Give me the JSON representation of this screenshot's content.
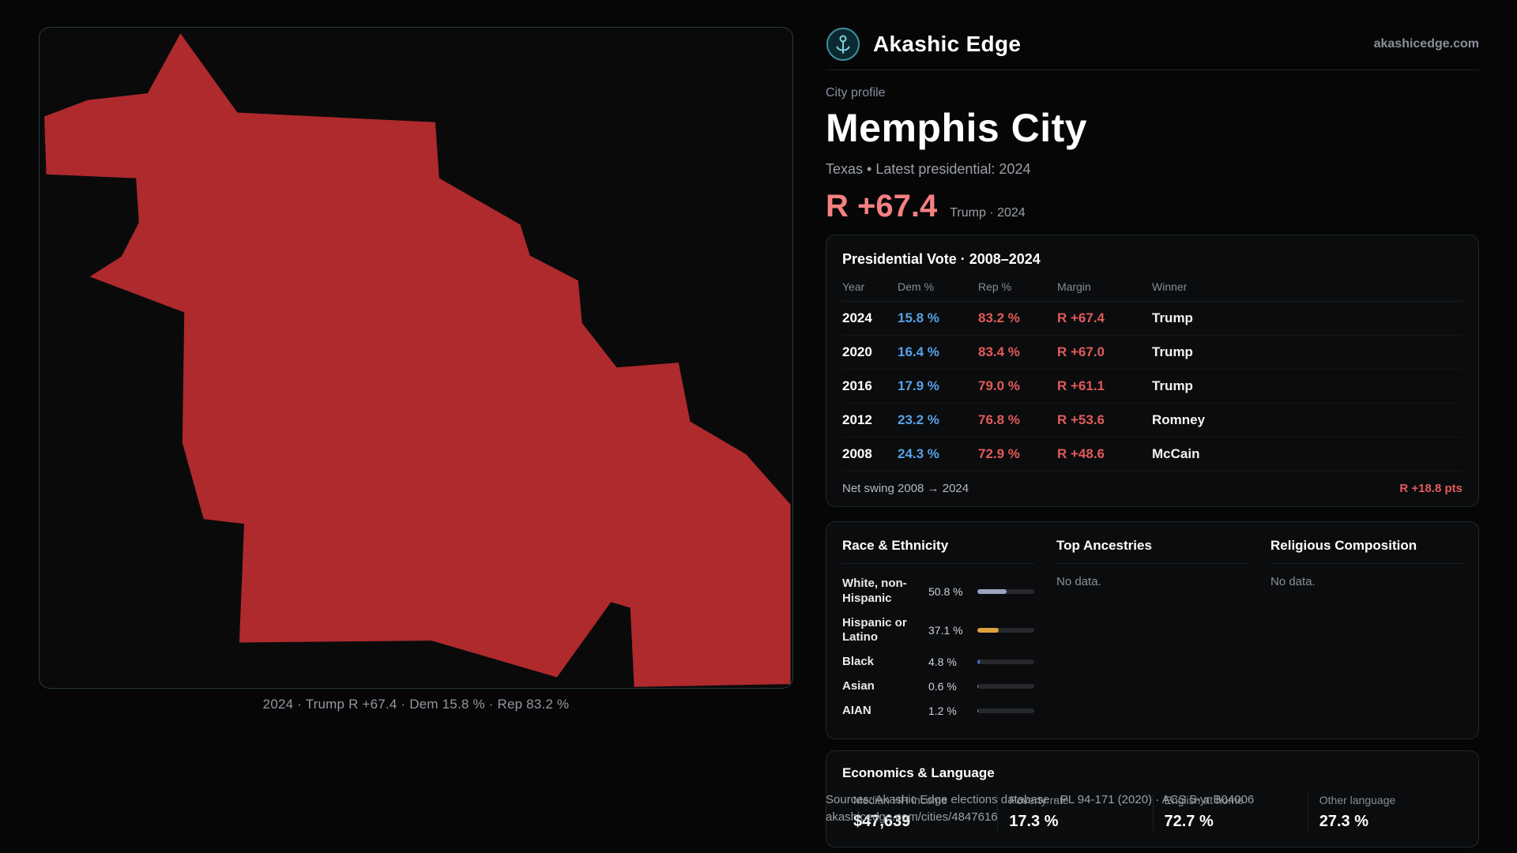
{
  "colors": {
    "dem": "#57a1e8",
    "rep": "#e25a5a",
    "headline": "#f48080",
    "mapfill": "#ae2a2d"
  },
  "brand": {
    "name": "Akashic Edge",
    "domain": "akashicedge.com"
  },
  "profile": {
    "kicker": "City profile",
    "title": "Memphis City",
    "subtitle": "Texas • Latest presidential: 2024",
    "headline_margin": "R +67.4",
    "headline_note": "Trump · 2024"
  },
  "map": {
    "caption": "2024 · Trump R +67.4 · Dem 15.8 % · Rep 83.2 %"
  },
  "vote": {
    "title": "Presidential Vote · 2008–2024",
    "columns": [
      "Year",
      "Dem %",
      "Rep %",
      "Margin",
      "Winner"
    ],
    "rows": [
      {
        "year": "2024",
        "dem": "15.8 %",
        "rep": "83.2 %",
        "margin": "R +67.4",
        "winner": "Trump"
      },
      {
        "year": "2020",
        "dem": "16.4 %",
        "rep": "83.4 %",
        "margin": "R +67.0",
        "winner": "Trump"
      },
      {
        "year": "2016",
        "dem": "17.9 %",
        "rep": "79.0 %",
        "margin": "R +61.1",
        "winner": "Trump"
      },
      {
        "year": "2012",
        "dem": "23.2 %",
        "rep": "76.8 %",
        "margin": "R +53.6",
        "winner": "Romney"
      },
      {
        "year": "2008",
        "dem": "24.3 %",
        "rep": "72.9 %",
        "margin": "R +48.6",
        "winner": "McCain"
      }
    ],
    "footer_label": "Net swing 2008 → 2024",
    "footer_value": "R +18.8 pts"
  },
  "demo": {
    "race": {
      "title": "Race & Ethnicity",
      "rows": [
        {
          "label": "White, non-Hispanic",
          "value": "50.8 %",
          "pct": 50.8,
          "color": "#9aa4bf"
        },
        {
          "label": "Hispanic or Latino",
          "value": "37.1 %",
          "pct": 37.1,
          "color": "#dfa13e"
        },
        {
          "label": "Black",
          "value": "4.8 %",
          "pct": 4.8,
          "color": "#4f68d8"
        },
        {
          "label": "Asian",
          "value": "0.6 %",
          "pct": 0.6,
          "color": "#9aa0a6"
        },
        {
          "label": "AIAN",
          "value": "1.2 %",
          "pct": 1.2,
          "color": "#8f9399"
        }
      ]
    },
    "ancestries": {
      "title": "Top Ancestries",
      "empty": "No data."
    },
    "religion": {
      "title": "Religious Composition",
      "empty": "No data."
    }
  },
  "econ": {
    "title": "Economics & Language",
    "stats": [
      {
        "label": "Median HH income",
        "value": "$47,639"
      },
      {
        "label": "Poverty rate",
        "value": "17.3 %"
      },
      {
        "label": "English at home",
        "value": "72.7 %"
      },
      {
        "label": "Other language",
        "value": "27.3 %"
      }
    ]
  },
  "footer": {
    "sources": "Sources: Akashic Edge elections database · PL 94-171 (2020) · ACS 5-yr B04006",
    "permalink": "akashicedge.com/cities/4847616"
  }
}
